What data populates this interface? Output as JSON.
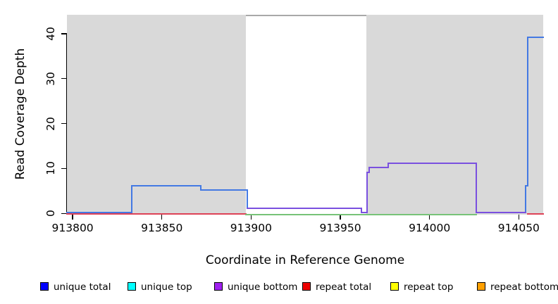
{
  "chart_data": {
    "type": "line",
    "title": "",
    "xlabel": "Coordinate in Reference Genome",
    "ylabel": "Read Coverage Depth",
    "xlim": [
      913796.8,
      914063.6
    ],
    "ylim": [
      0,
      44.2
    ],
    "xticks": [
      913800,
      913850,
      913900,
      913950,
      914000,
      914050
    ],
    "yticks": [
      0,
      10,
      20,
      30,
      40
    ],
    "grid": false,
    "plot_background": "#ffffff",
    "shaded_regions": [
      {
        "name": "repeat-shade-left",
        "x0": 913796.8,
        "x1": 913897,
        "color": "#D9D9D9"
      },
      {
        "name": "repeat-shade-right",
        "x0": 913964.5,
        "x1": 914063.6,
        "color": "#D9D9D9"
      }
    ],
    "gap_top_line": {
      "x0": 913897,
      "x1": 913964.5,
      "color": "#A9A9A9"
    },
    "series": [
      {
        "name": "repeat total",
        "color": "#DE4256",
        "dy": 0.8,
        "segments": [
          [
            [
              913796.8,
              0
            ],
            [
              913897,
              0
            ]
          ],
          [
            [
              914055,
              0
            ],
            [
              914063.6,
              0
            ]
          ]
        ]
      },
      {
        "name": "top strands overlap",
        "color": "#77C378",
        "dy": 1.8,
        "segments": [
          [
            [
              913897,
              0
            ],
            [
              914026,
              0
            ]
          ]
        ]
      },
      {
        "name": "unique total",
        "color": "#4379E3",
        "dy": -1,
        "segments": [
          [
            [
              913796.8,
              0
            ],
            [
              913833,
              0
            ],
            [
              913833,
              6
            ],
            [
              913872,
              6
            ],
            [
              913872,
              5
            ],
            [
              913898,
              5
            ],
            [
              913898,
              1
            ],
            [
              913962,
              1
            ],
            [
              913962,
              0
            ],
            [
              913965,
              0
            ],
            [
              913965,
              9
            ],
            [
              913966,
              9
            ],
            [
              913966,
              10
            ],
            [
              913977,
              10
            ],
            [
              913977,
              11
            ],
            [
              914026,
              11
            ],
            [
              914026,
              0
            ],
            [
              914054,
              0
            ],
            [
              914054,
              6
            ],
            [
              914055,
              6
            ],
            [
              914055,
              39
            ],
            [
              914063.6,
              39
            ]
          ]
        ]
      },
      {
        "name": "unique bottom",
        "color": "#7A50DF",
        "dy": -1,
        "segments": [
          [
            [
              913898,
              1
            ],
            [
              913962,
              1
            ],
            [
              913962,
              0
            ],
            [
              913965,
              0
            ],
            [
              913965,
              9
            ],
            [
              913966,
              9
            ],
            [
              913966,
              10
            ],
            [
              913977,
              10
            ],
            [
              913977,
              11
            ],
            [
              914026,
              11
            ],
            [
              914026,
              0
            ],
            [
              914054,
              0
            ]
          ]
        ]
      }
    ],
    "legend": {
      "position": "bottom",
      "items": [
        {
          "label": "unique total",
          "color": "#0000FF"
        },
        {
          "label": "unique top",
          "color": "#00FFFF"
        },
        {
          "label": "unique bottom",
          "color": "#A020F0"
        },
        {
          "label": "repeat total",
          "color": "#EE0000"
        },
        {
          "label": "repeat top",
          "color": "#FFFF00"
        },
        {
          "label": "repeat bottom",
          "color": "#FFA000"
        }
      ]
    }
  }
}
